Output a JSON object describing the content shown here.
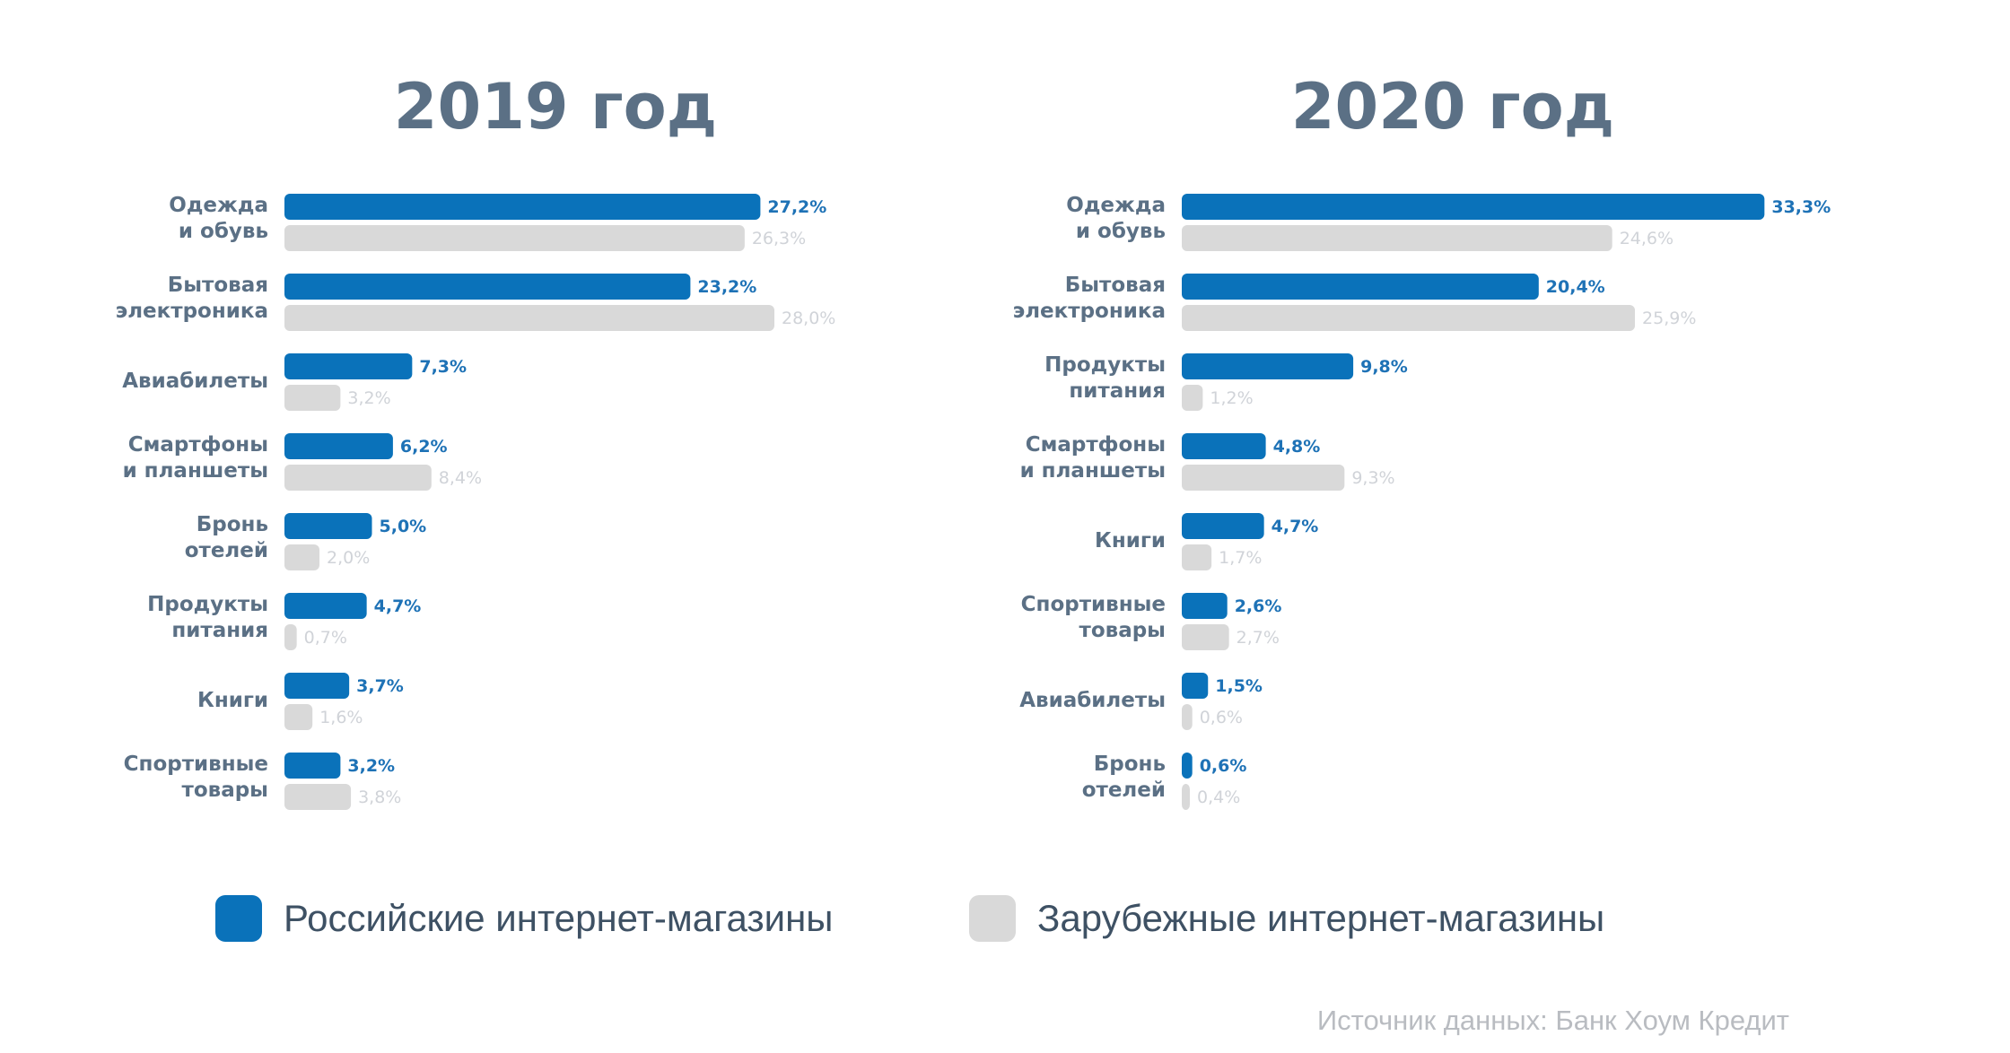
{
  "chart_data": [
    {
      "type": "bar",
      "orientation": "horizontal",
      "title": "2019 год",
      "categories": [
        [
          "Одежда",
          "и обувь"
        ],
        [
          "Бытовая",
          "электроника"
        ],
        [
          "Авиабилеты"
        ],
        [
          "Смартфоны",
          "и планшеты"
        ],
        [
          "Бронь",
          "отелей"
        ],
        [
          "Продукты",
          "питания"
        ],
        [
          "Книги"
        ],
        [
          "Спортивные",
          "товары"
        ]
      ],
      "series": [
        {
          "name": "Российские интернет-магазины",
          "values": [
            27.2,
            23.2,
            7.3,
            6.2,
            5.0,
            4.7,
            3.7,
            3.2
          ],
          "labels": [
            "27,2%",
            "23,2%",
            "7,3%",
            "6,2%",
            "5,0%",
            "4,7%",
            "3,7%",
            "3,2%"
          ]
        },
        {
          "name": "Зарубежные интернет-магазины",
          "values": [
            26.3,
            28.0,
            3.2,
            8.4,
            2.0,
            0.7,
            1.6,
            3.8
          ],
          "labels": [
            "26,3%",
            "28,0%",
            "3,2%",
            "8,4%",
            "2,0%",
            "0,7%",
            "1,6%",
            "3,8%"
          ]
        }
      ]
    },
    {
      "type": "bar",
      "orientation": "horizontal",
      "title": "2020 год",
      "categories": [
        [
          "Одежда",
          "и обувь"
        ],
        [
          "Бытовая",
          "электроника"
        ],
        [
          "Продукты",
          "питания"
        ],
        [
          "Смартфоны",
          "и планшеты"
        ],
        [
          "Книги"
        ],
        [
          "Спортивные",
          "товары"
        ],
        [
          "Авиабилеты"
        ],
        [
          "Бронь",
          "отелей"
        ]
      ],
      "series": [
        {
          "name": "Российские интернет-магазины",
          "values": [
            33.3,
            20.4,
            9.8,
            4.8,
            4.7,
            2.6,
            1.5,
            0.6
          ],
          "labels": [
            "33,3%",
            "20,4%",
            "9,8%",
            "4,8%",
            "4,7%",
            "2,6%",
            "1,5%",
            "0,6%"
          ]
        },
        {
          "name": "Зарубежные интернет-магазины",
          "values": [
            24.6,
            25.9,
            1.2,
            9.3,
            1.7,
            2.7,
            0.6,
            0.4
          ],
          "labels": [
            "24,6%",
            "25,9%",
            "1,2%",
            "9,3%",
            "1,7%",
            "2,7%",
            "0,6%",
            "0,4%"
          ]
        }
      ]
    }
  ],
  "legend": [
    {
      "label": "Российские интернет-магазины",
      "color": "#0a72ba"
    },
    {
      "label": "Зарубежные интернет-магазины",
      "color": "#d9d9d9"
    }
  ],
  "source": "Источник данных: Банк Хоум Кредит",
  "colors": {
    "russian": "#0a72ba",
    "foreign": "#d9d9d9",
    "title": "#5b7085",
    "label": "#5b7085"
  }
}
